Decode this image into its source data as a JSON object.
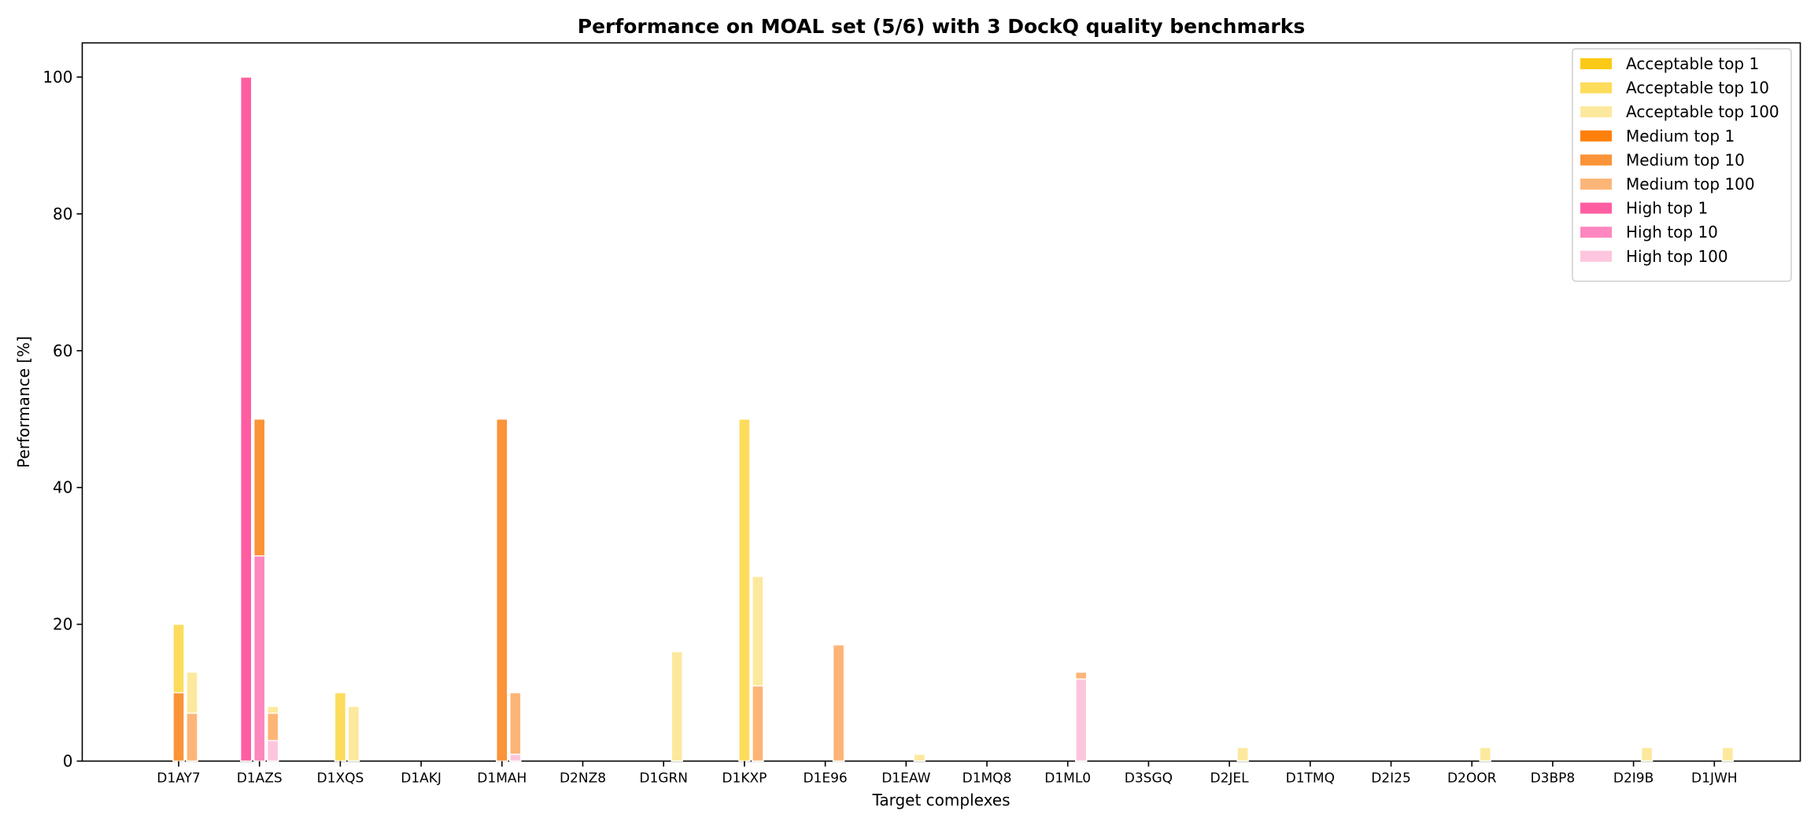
{
  "chart_data": {
    "type": "bar",
    "title": "Performance on MOAL set (5/6) with 3 DockQ quality benchmarks",
    "xlabel": "Target complexes",
    "ylabel": "Performance [%]",
    "ylim": [
      0,
      105
    ],
    "yticks": [
      0,
      20,
      40,
      60,
      80,
      100
    ],
    "grid": false,
    "legend_position": "top-right",
    "categories": [
      "D1AY7",
      "D1AZS",
      "D1XQS",
      "D1AKJ",
      "D1MAH",
      "D2NZ8",
      "D1GRN",
      "D1KXP",
      "D1E96",
      "D1EAW",
      "D1MQ8",
      "D1ML0",
      "D3SGQ",
      "D2JEL",
      "D1TMQ",
      "D2I25",
      "D2OOR",
      "D3BP8",
      "D2I9B",
      "D1JWH"
    ],
    "series": [
      {
        "name": "Acceptable top 1",
        "group": "top 1",
        "color": "#fcc916",
        "values": [
          0,
          0,
          0,
          0,
          0,
          0,
          0,
          0,
          0,
          0,
          0,
          0,
          0,
          0,
          0,
          0,
          0,
          0,
          0,
          0
        ]
      },
      {
        "name": "Acceptable top 10",
        "group": "top 10",
        "color": "#fddc5c",
        "values": [
          20,
          50,
          10,
          0,
          50,
          0,
          0,
          50,
          0,
          0,
          0,
          0,
          0,
          0,
          0,
          0,
          0,
          0,
          0,
          0
        ]
      },
      {
        "name": "Acceptable top 100",
        "group": "top 100",
        "color": "#fde99d",
        "values": [
          13,
          8,
          8,
          0,
          10,
          0,
          16,
          27,
          17,
          1,
          0,
          13,
          0,
          2,
          0,
          0,
          2,
          0,
          2,
          2
        ]
      },
      {
        "name": "Medium top 1",
        "group": "top 1",
        "color": "#fd800c",
        "values": [
          0,
          0,
          0,
          0,
          0,
          0,
          0,
          0,
          0,
          0,
          0,
          0,
          0,
          0,
          0,
          0,
          0,
          0,
          0,
          0
        ]
      },
      {
        "name": "Medium top 10",
        "group": "top 10",
        "color": "#fb9338",
        "values": [
          10,
          50,
          0,
          0,
          50,
          0,
          0,
          0,
          0,
          0,
          0,
          0,
          0,
          0,
          0,
          0,
          0,
          0,
          0,
          0
        ]
      },
      {
        "name": "Medium top 100",
        "group": "top 100",
        "color": "#fdb577",
        "values": [
          7,
          7,
          0,
          0,
          10,
          0,
          0,
          11,
          17,
          0,
          0,
          13,
          0,
          0,
          0,
          0,
          0,
          0,
          0,
          0
        ]
      },
      {
        "name": "High top 1",
        "group": "top 1",
        "color": "#fe5ea1",
        "values": [
          0,
          100,
          0,
          0,
          0,
          0,
          0,
          0,
          0,
          0,
          0,
          0,
          0,
          0,
          0,
          0,
          0,
          0,
          0,
          0
        ]
      },
      {
        "name": "High top 10",
        "group": "top 10",
        "color": "#fd87be",
        "values": [
          0,
          30,
          0,
          0,
          0,
          0,
          0,
          0,
          0,
          0,
          0,
          0,
          0,
          0,
          0,
          0,
          0,
          0,
          0,
          0
        ]
      },
      {
        "name": "High top 100",
        "group": "top 100",
        "color": "#fec6de",
        "values": [
          0,
          3,
          0,
          0,
          1,
          0,
          0,
          0,
          0,
          0,
          0,
          12,
          0,
          0,
          0,
          0,
          0,
          0,
          0,
          0
        ]
      }
    ]
  }
}
